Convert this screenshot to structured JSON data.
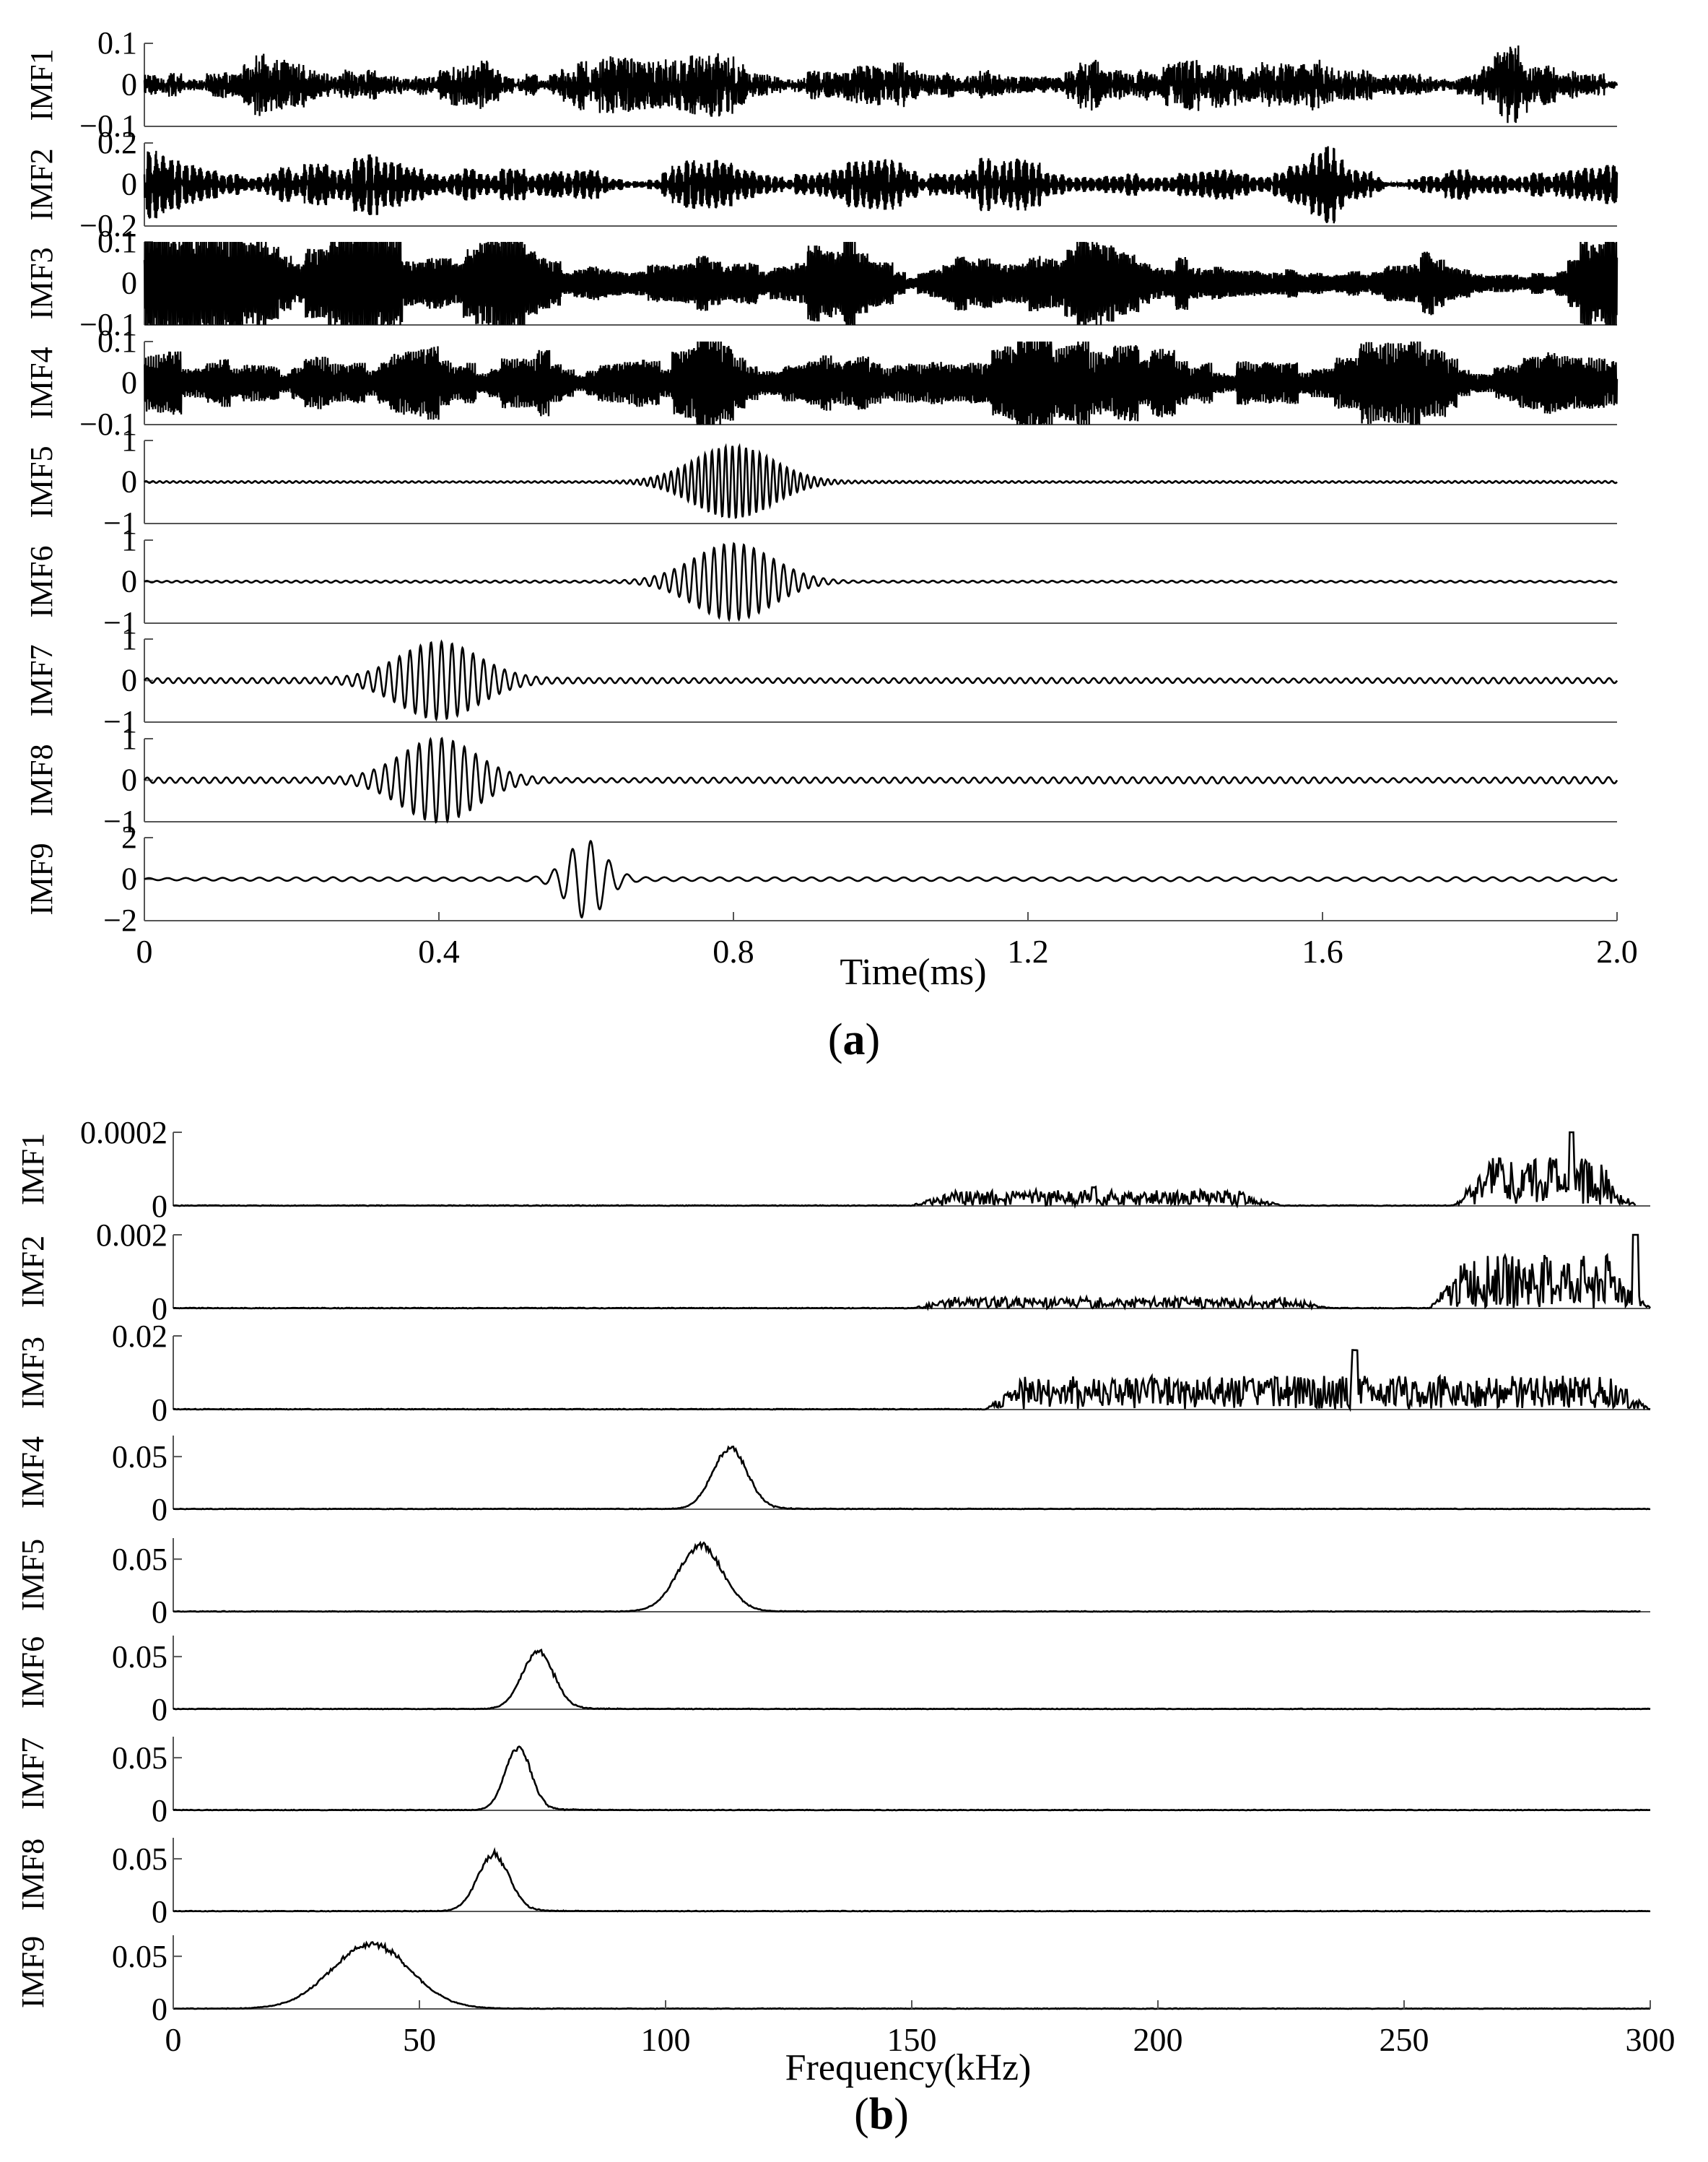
{
  "figure": {
    "caption_a": "a",
    "caption_b": "b"
  },
  "chart_data": [
    {
      "type": "line",
      "panel": "a",
      "xlabel": "Time(ms)",
      "xlim": [
        0,
        2.0
      ],
      "xticks": [
        "0",
        "0.4",
        "0.8",
        "1.2",
        "1.6",
        "2.0"
      ],
      "xtick_values": [
        0,
        0.4,
        0.8,
        1.2,
        1.6,
        2.0
      ],
      "grid": false,
      "series": [
        {
          "name": "IMF1",
          "ylim": [
            -0.1,
            0.1
          ],
          "yticks": [
            "0.1",
            "0",
            "−0.1"
          ],
          "ytick_values": [
            0.1,
            0,
            -0.1
          ],
          "kind": "noise",
          "freq_cycles": 400,
          "amplitude": 0.08,
          "seed": 11
        },
        {
          "name": "IMF2",
          "ylim": [
            -0.2,
            0.2
          ],
          "yticks": [
            "0.2",
            "0",
            "−0.2"
          ],
          "ytick_values": [
            0.2,
            0,
            -0.2
          ],
          "kind": "noise",
          "freq_cycles": 380,
          "amplitude": 0.09,
          "seed": 23
        },
        {
          "name": "IMF3",
          "ylim": [
            -0.1,
            0.1
          ],
          "yticks": [
            "0.1",
            "0",
            "−0.1"
          ],
          "ytick_values": [
            0.1,
            0,
            -0.1
          ],
          "kind": "noise",
          "freq_cycles": 330,
          "amplitude": 0.085,
          "seed": 37
        },
        {
          "name": "IMF4",
          "ylim": [
            -0.1,
            0.1
          ],
          "yticks": [
            "0.1",
            "0",
            "−0.1"
          ],
          "ytick_values": [
            0.1,
            0,
            -0.1
          ],
          "kind": "noise",
          "freq_cycles": 230,
          "amplitude": 0.085,
          "seed": 41
        },
        {
          "name": "IMF5",
          "ylim": [
            -1,
            1
          ],
          "yticks": [
            "1",
            "0",
            "−1"
          ],
          "ytick_values": [
            1,
            0,
            -1
          ],
          "kind": "packet",
          "center_ms": 0.8,
          "width_ms": 0.075,
          "freq_khz": 108,
          "amplitude": 0.85,
          "background": 0.02,
          "seed": 53
        },
        {
          "name": "IMF6",
          "ylim": [
            -1,
            1
          ],
          "yticks": [
            "1",
            "0",
            "−1"
          ],
          "ytick_values": [
            1,
            0,
            -1
          ],
          "kind": "packet",
          "center_ms": 0.8,
          "width_ms": 0.075,
          "freq_khz": 74,
          "amplitude": 0.9,
          "background": 0.02,
          "seed": 59
        },
        {
          "name": "IMF7",
          "ylim": [
            -1,
            1
          ],
          "yticks": [
            "1",
            "0",
            "−1"
          ],
          "ytick_values": [
            1,
            0,
            -1
          ],
          "kind": "packet",
          "center_ms": 0.4,
          "width_ms": 0.075,
          "freq_khz": 70,
          "amplitude": 0.88,
          "background": 0.05,
          "seed": 61
        },
        {
          "name": "IMF8",
          "ylim": [
            -1,
            1
          ],
          "yticks": [
            "1",
            "0",
            "−1"
          ],
          "ytick_values": [
            1,
            0,
            -1
          ],
          "kind": "packet",
          "center_ms": 0.4,
          "width_ms": 0.07,
          "freq_khz": 65,
          "amplitude": 0.95,
          "background": 0.06,
          "seed": 67
        },
        {
          "name": "IMF9",
          "ylim": [
            -2,
            2
          ],
          "yticks": [
            "2",
            "0",
            "−2"
          ],
          "ytick_values": [
            2,
            0,
            -2
          ],
          "kind": "packet",
          "center_ms": 0.6,
          "width_ms": 0.035,
          "freq_khz": 40,
          "amplitude": 1.8,
          "background": 0.08,
          "seed": 71
        }
      ]
    },
    {
      "type": "line",
      "panel": "b",
      "xlabel": "Frequency(kHz)",
      "xlim": [
        0,
        300
      ],
      "xticks": [
        "0",
        "50",
        "100",
        "150",
        "200",
        "250",
        "300"
      ],
      "xtick_values": [
        0,
        50,
        100,
        150,
        200,
        250,
        300
      ],
      "grid": false,
      "series": [
        {
          "name": "IMF1",
          "ylim": [
            0,
            0.0002
          ],
          "yticks": [
            "0.0002",
            "0"
          ],
          "ytick_values": [
            0.0002,
            0
          ],
          "xend": 297,
          "kind": "spectrum_noise",
          "bands": [
            [
              150,
              225,
              3.5e-05
            ],
            [
              260,
              297,
              0.00011
            ]
          ],
          "peaks": [
            [
              187,
              5e-05
            ],
            [
              284,
              0.0002
            ]
          ],
          "seed": 5
        },
        {
          "name": "IMF2",
          "ylim": [
            0,
            0.002
          ],
          "yticks": [
            "0.002",
            "0"
          ],
          "ytick_values": [
            0.002,
            0
          ],
          "xend": 300,
          "kind": "spectrum_noise",
          "bands": [
            [
              150,
              235,
              0.00025
            ],
            [
              255,
              300,
              0.0012
            ]
          ],
          "peaks": [
            [
              297,
              0.002
            ]
          ],
          "seed": 9
        },
        {
          "name": "IMF3",
          "ylim": [
            0,
            0.02
          ],
          "yticks": [
            "0.02",
            "0"
          ],
          "ytick_values": [
            0.02,
            0
          ],
          "xend": 300,
          "kind": "spectrum_noise",
          "bands": [
            [
              165,
              300,
              0.0075
            ]
          ],
          "peaks": [
            [
              240,
              0.016
            ]
          ],
          "seed": 13
        },
        {
          "name": "IMF4",
          "ylim": [
            0,
            0.07
          ],
          "yticks": [
            "0.05",
            "0"
          ],
          "ytick_values": [
            0.05,
            0
          ],
          "xend": 300,
          "kind": "spectrum_peak",
          "peak_khz": 113,
          "peak_val": 0.059,
          "width_khz": 3.5,
          "seed": 17
        },
        {
          "name": "IMF5",
          "ylim": [
            0,
            0.07
          ],
          "yticks": [
            "0.05",
            "0"
          ],
          "ytick_values": [
            0.05,
            0
          ],
          "xend": 298,
          "kind": "spectrum_peak",
          "peak_khz": 107,
          "peak_val": 0.064,
          "width_khz": 4.5,
          "seed": 19
        },
        {
          "name": "IMF6",
          "ylim": [
            0,
            0.07
          ],
          "yticks": [
            "0.05",
            "0"
          ],
          "ytick_values": [
            0.05,
            0
          ],
          "xend": 300,
          "kind": "spectrum_peak",
          "peak_khz": 74,
          "peak_val": 0.056,
          "width_khz": 3.2,
          "seed": 29
        },
        {
          "name": "IMF7",
          "ylim": [
            0,
            0.07
          ],
          "yticks": [
            "0.05",
            "0"
          ],
          "ytick_values": [
            0.05,
            0
          ],
          "xend": 300,
          "kind": "spectrum_peak",
          "peak_khz": 70,
          "peak_val": 0.061,
          "width_khz": 2.6,
          "seed": 31
        },
        {
          "name": "IMF8",
          "ylim": [
            0,
            0.07
          ],
          "yticks": [
            "0.05",
            "0"
          ],
          "ytick_values": [
            0.05,
            0
          ],
          "xend": 300,
          "kind": "spectrum_peak",
          "peak_khz": 65,
          "peak_val": 0.055,
          "width_khz": 3.2,
          "seed": 43
        },
        {
          "name": "IMF9",
          "ylim": [
            0,
            0.07
          ],
          "yticks": [
            "0.05",
            "0"
          ],
          "ytick_values": [
            0.05,
            0
          ],
          "xend": 300,
          "kind": "spectrum_peak",
          "peak_khz": 40,
          "peak_val": 0.063,
          "width_khz": 8,
          "seed": 47
        }
      ]
    }
  ]
}
